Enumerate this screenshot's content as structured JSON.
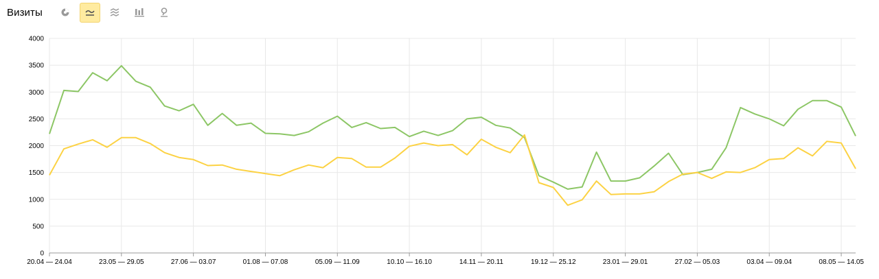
{
  "header": {
    "title": "Визиты",
    "tools": [
      {
        "icon": "pie-chart-icon",
        "active": false
      },
      {
        "icon": "line-chart-icon",
        "active": true
      },
      {
        "icon": "area-chart-icon",
        "active": false
      },
      {
        "icon": "bar-chart-icon",
        "active": false
      },
      {
        "icon": "map-pin-icon",
        "active": false
      }
    ]
  },
  "colors": {
    "green": "#8cc665",
    "yellow": "#fcd243",
    "grid": "#e8e8e8",
    "axis": "#999999"
  },
  "chart_data": {
    "type": "line",
    "ylim": [
      0,
      4000
    ],
    "yticks": [
      "0",
      "500",
      "1000",
      "1500",
      "2000",
      "2500",
      "3000",
      "3500",
      "4000"
    ],
    "x_tick_labels": [
      {
        "index": 0,
        "label": "20.04 — 24.04"
      },
      {
        "index": 5,
        "label": "23.05 — 29.05"
      },
      {
        "index": 10,
        "label": "27.06 — 03.07"
      },
      {
        "index": 15,
        "label": "01.08 — 07.08"
      },
      {
        "index": 20,
        "label": "05.09 — 11.09"
      },
      {
        "index": 25,
        "label": "10.10 — 16.10"
      },
      {
        "index": 30,
        "label": "14.11 — 20.11"
      },
      {
        "index": 35,
        "label": "19.12 — 25.12"
      },
      {
        "index": 40,
        "label": "23.01 — 29.01"
      },
      {
        "index": 45,
        "label": "27.02 — 05.03"
      },
      {
        "index": 50,
        "label": "03.04 — 09.04"
      },
      {
        "index": 55,
        "label": "08.05 — 14.05"
      }
    ],
    "series": [
      {
        "color": "#8cc665",
        "values": [
          2220,
          3030,
          3010,
          3360,
          3210,
          3490,
          3200,
          3090,
          2740,
          2650,
          2770,
          2380,
          2600,
          2380,
          2420,
          2230,
          2220,
          2190,
          2260,
          2420,
          2550,
          2340,
          2430,
          2320,
          2340,
          2170,
          2270,
          2190,
          2280,
          2500,
          2530,
          2380,
          2330,
          2150,
          1440,
          1320,
          1190,
          1230,
          1880,
          1340,
          1340,
          1400,
          1620,
          1860,
          1460,
          1500,
          1560,
          1960,
          2710,
          2590,
          2500,
          2370,
          2680,
          2840,
          2840,
          2720,
          2180
        ]
      },
      {
        "color": "#fcd243",
        "values": [
          1450,
          1940,
          2030,
          2110,
          1970,
          2150,
          2150,
          2040,
          1870,
          1780,
          1740,
          1630,
          1640,
          1560,
          1520,
          1480,
          1440,
          1550,
          1640,
          1590,
          1780,
          1760,
          1600,
          1600,
          1770,
          1990,
          2050,
          2000,
          2020,
          1830,
          2120,
          1970,
          1870,
          2200,
          1310,
          1220,
          890,
          990,
          1340,
          1090,
          1100,
          1100,
          1140,
          1330,
          1470,
          1500,
          1390,
          1510,
          1500,
          1590,
          1740,
          1760,
          1960,
          1810,
          2080,
          2050,
          1570
        ]
      }
    ]
  }
}
